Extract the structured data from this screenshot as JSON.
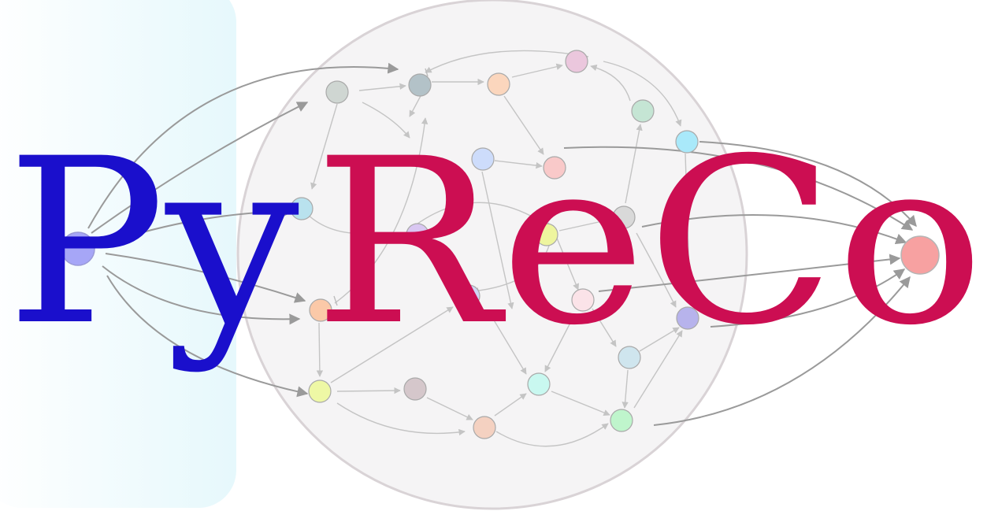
{
  "logo": {
    "part_py": "Py",
    "part_reco": "ReCo",
    "colors": {
      "py": "#1a0fcc",
      "reco": "#cc0e52",
      "input_panel": "#e6f8fc",
      "reservoir_fill": "#efedee",
      "reservoir_stroke": "#d9d3d6",
      "edge_gray": "#9a9a9a",
      "edge_light": "#c4c4c4",
      "input_node": "#a6a6f7",
      "output_node": "#f7a1a1"
    }
  },
  "diagram": {
    "input_node": "input-neuron",
    "output_node": "output-neuron",
    "reservoir_nodes": [
      {
        "id": "n1",
        "color": "#cfd6d2"
      },
      {
        "id": "n2",
        "color": "#b3c2c8"
      },
      {
        "id": "n3",
        "color": "#fbd6bd"
      },
      {
        "id": "n4",
        "color": "#ebc7dd"
      },
      {
        "id": "n5",
        "color": "#c5e5d4"
      },
      {
        "id": "n6",
        "color": "#a9e9fa"
      },
      {
        "id": "n7",
        "color": "#cddcfb"
      },
      {
        "id": "n8",
        "color": "#f9c9c9"
      },
      {
        "id": "n9",
        "color": "#b9e2ee"
      },
      {
        "id": "n10",
        "color": "#d9d9d9"
      },
      {
        "id": "n11",
        "color": "#eef59e"
      },
      {
        "id": "n12",
        "color": "#d9c7f2"
      },
      {
        "id": "n13",
        "color": "#fbc9a8"
      },
      {
        "id": "n14",
        "color": "#fbe3e8"
      },
      {
        "id": "n15",
        "color": "#b7b3ec"
      },
      {
        "id": "n16",
        "color": "#cfe5ee"
      },
      {
        "id": "n17",
        "color": "#eef8a5"
      },
      {
        "id": "n18",
        "color": "#d5c7cb"
      },
      {
        "id": "n19",
        "color": "#c9f8f0"
      },
      {
        "id": "n20",
        "color": "#f4d1c1"
      },
      {
        "id": "n21",
        "color": "#bff5cc"
      },
      {
        "id": "n22",
        "color": "#d0d6f4"
      }
    ]
  }
}
